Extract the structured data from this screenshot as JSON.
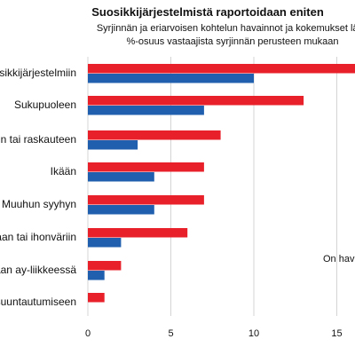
{
  "chart_data": {
    "type": "bar",
    "orientation": "horizontal",
    "title": "Suosikkijärjestelmistä raportoidaan eniten",
    "subtitle_lines": [
      "Syrjinnän ja eriarvoisen kohtelun havainnot ja kokemukset lääk",
      "%-osuus vastaajista syrjinnän perusteen mukaan"
    ],
    "categories": [
      "Suosikkijärjestelmiin",
      "Sukupuoleen",
      "Raskauteen tai raskauteen",
      "Ikään",
      "Muuhun syyhyn",
      "Etniseen alkuperään tai ihonväriin",
      "Osallistumiseen ay-liikkeessä",
      "Seksuaaliseen suuntautumiseen"
    ],
    "category_labels": [
      "osikkijärjestelmiin",
      "Sukupuoleen",
      "een tai raskauteen",
      "Ikään",
      "Muuhun syyhyn",
      "taan tai ihonväriin",
      "taan ay-liikkeessä",
      "suuntautumiseen"
    ],
    "series": [
      {
        "color": "#e8202a",
        "values": [
          17,
          13,
          8,
          7,
          7,
          6,
          2,
          1
        ]
      },
      {
        "color": "#1f5fae",
        "values": [
          10,
          7,
          3,
          4,
          4,
          2,
          1,
          null
        ]
      }
    ],
    "xlim": [
      0,
      16.5
    ],
    "x_ticks": [
      0,
      5,
      10,
      15
    ],
    "legend_partial_text": "On hava",
    "grid": true
  }
}
